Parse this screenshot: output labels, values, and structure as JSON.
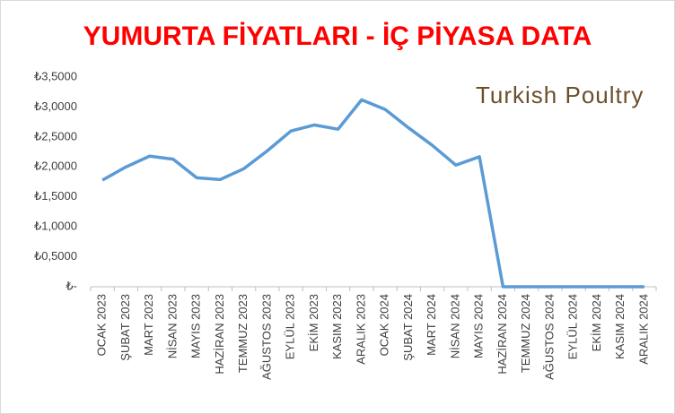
{
  "chart_data": {
    "type": "line",
    "title": "YUMURTA FİYATLARI  - İÇ PİYASA DATA",
    "logo": "Turkish Poultry",
    "categories": [
      "OCAK 2023",
      "ŞUBAT 2023",
      "MART 2023",
      "NİSAN 2023",
      "MAYIS 2023",
      "HAZİRAN 2023",
      "TEMMUZ 2023",
      "AĞUSTOS 2023",
      "EYLÜL 2023",
      "EKİM 2023",
      "KASIM 2023",
      "ARALIK 2023",
      "OCAK 2024",
      "ŞUBAT 2024",
      "MART 2024",
      "NİSAN 2024",
      "MAYIS 2024",
      "HAZİRAN 2024",
      "TEMMUZ 2024",
      "AĞUSTOS 2024",
      "EYLÜL 2024",
      "EKİM 2024",
      "KASIM 2024",
      "ARALIK 2024"
    ],
    "values": [
      1.78,
      2.0,
      2.18,
      2.13,
      1.82,
      1.79,
      1.97,
      2.27,
      2.6,
      2.7,
      2.63,
      3.12,
      2.96,
      2.65,
      2.36,
      2.03,
      2.17,
      0,
      0,
      0,
      0,
      0,
      0,
      0
    ],
    "color": "#5b9bd5",
    "ylim": [
      0,
      3.5
    ],
    "yticks": [
      {
        "value": 0,
        "label": "₺-"
      },
      {
        "value": 0.5,
        "label": "₺0,5000"
      },
      {
        "value": 1,
        "label": "₺1,0000"
      },
      {
        "value": 1.5,
        "label": "₺1,5000"
      },
      {
        "value": 2,
        "label": "₺2,0000"
      },
      {
        "value": 2.5,
        "label": "₺2,5000"
      },
      {
        "value": 3,
        "label": "₺3,0000"
      },
      {
        "value": 3.5,
        "label": "₺3,5000"
      }
    ],
    "grid": false
  }
}
